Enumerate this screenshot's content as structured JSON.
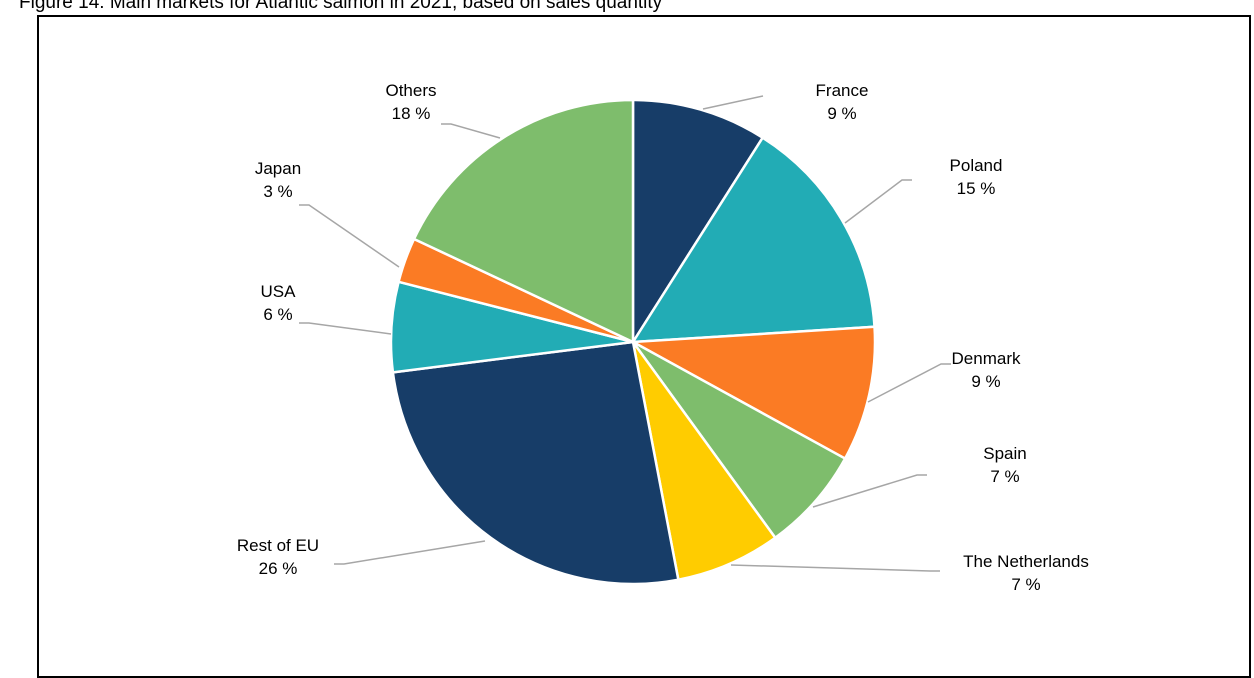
{
  "figure_title": "Figure 14: Main markets for Atlantic salmon in 2021, based on sales quantity",
  "chart_data": {
    "type": "pie",
    "title": "",
    "start": "12 o'clock, clockwise",
    "slices": [
      {
        "label": "France",
        "value": 9,
        "value_label": "9 %",
        "color": "#173D68"
      },
      {
        "label": "Poland",
        "value": 15,
        "value_label": "15 %",
        "color": "#22ACB5"
      },
      {
        "label": "Denmark",
        "value": 9,
        "value_label": "9 %",
        "color": "#FB7B24"
      },
      {
        "label": "Spain",
        "value": 7,
        "value_label": "7 %",
        "color": "#7EBD6C"
      },
      {
        "label": "The Netherlands",
        "value": 7,
        "value_label": "7 %",
        "color": "#FFCC00"
      },
      {
        "label": "Rest of EU",
        "value": 26,
        "value_label": "26 %",
        "color": "#173D68"
      },
      {
        "label": "USA",
        "value": 6,
        "value_label": "6 %",
        "color": "#22ACB5"
      },
      {
        "label": "Japan",
        "value": 3,
        "value_label": "3 %",
        "color": "#FB7B24"
      },
      {
        "label": "Others",
        "value": 18,
        "value_label": "18 %",
        "color": "#7EBD6C"
      }
    ]
  }
}
